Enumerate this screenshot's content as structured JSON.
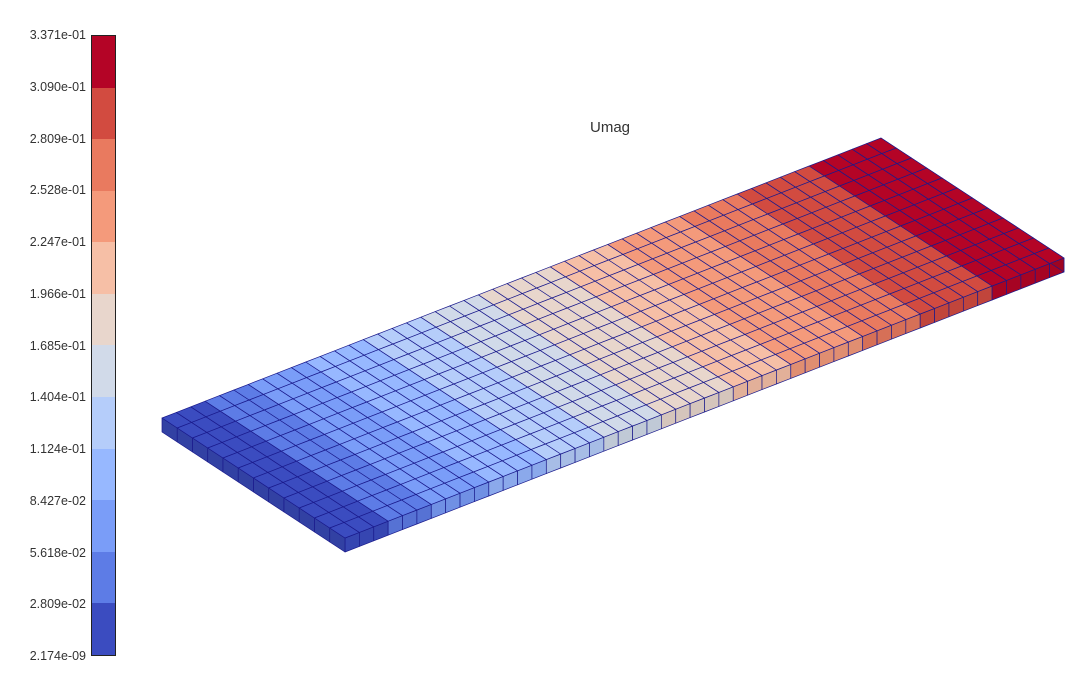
{
  "title": "Umag",
  "colorbar": {
    "tick_labels": [
      "3.371e-01",
      "3.090e-01",
      "2.809e-01",
      "2.528e-01",
      "2.247e-01",
      "1.966e-01",
      "1.685e-01",
      "1.404e-01",
      "1.124e-01",
      "8.427e-02",
      "5.618e-02",
      "2.809e-02",
      "2.174e-09"
    ],
    "band_colors_top_to_bottom": [
      "#b40426",
      "#d24b40",
      "#e97a5f",
      "#f49a7b",
      "#f6bfa6",
      "#e8d6cc",
      "#d1dae9",
      "#b5cdfa",
      "#97b8ff",
      "#7a9df8",
      "#5d7ce6",
      "#3b4cc0"
    ],
    "min": 2.174e-09,
    "max": 0.3371
  },
  "mesh": {
    "grid_lines": "#1a1a8c"
  }
}
